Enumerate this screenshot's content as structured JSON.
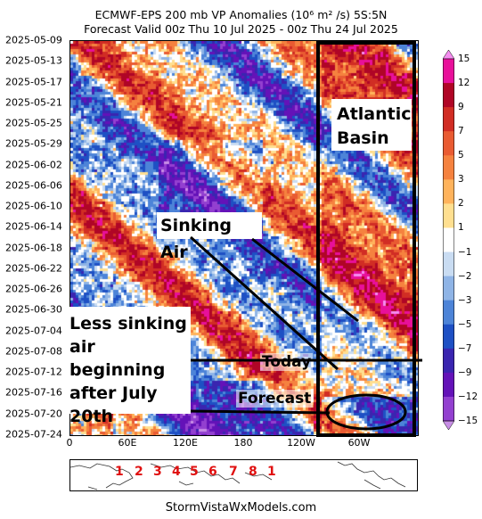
{
  "title_line1": "ECMWF-EPS 200 mb VP Anomalies (10⁶ m² /s) 5S:5N",
  "title_line2": "Forecast Valid 00z Thu 10 Jul 2025 - 00z Thu 24 Jul 2025",
  "footer": "StormVistaWxModels.com",
  "annotations": {
    "atlantic_line1": "Atlantic",
    "atlantic_line2": "Basin",
    "sinking_air": "Sinking Air",
    "less_sinking": [
      "Less sinking",
      "air beginning",
      "after July",
      "20th"
    ],
    "today": "Today",
    "forecast": "Forecast"
  },
  "mjo_phases": [
    "1",
    "2",
    "3",
    "4",
    "5",
    "6",
    "7",
    "8",
    "1"
  ],
  "chart_data": {
    "type": "heatmap",
    "title": "ECMWF-EPS 200 mb VP Anomalies (10⁶ m² /s) 5S:5N",
    "subtitle": "Forecast Valid 00z Thu 10 Jul 2025 - 00z Thu 24 Jul 2025",
    "y_ticks": [
      "2025-05-09",
      "2025-05-13",
      "2025-05-17",
      "2025-05-21",
      "2025-05-25",
      "2025-05-29",
      "2025-06-02",
      "2025-06-06",
      "2025-06-10",
      "2025-06-14",
      "2025-06-18",
      "2025-06-22",
      "2025-06-26",
      "2025-06-30",
      "2025-07-04",
      "2025-07-08",
      "2025-07-12",
      "2025-07-16",
      "2025-07-20",
      "2025-07-24"
    ],
    "y_range": [
      "2025-05-09",
      "2025-07-24"
    ],
    "x_ticks": [
      "0",
      "60E",
      "120E",
      "180",
      "120W",
      "60W"
    ],
    "x_range_lon": [
      0,
      360
    ],
    "colorbar_ticks": [
      15,
      12,
      9,
      7,
      5,
      3,
      2,
      1,
      -1,
      -2,
      -3,
      -5,
      -7,
      -9,
      -12,
      -15
    ],
    "colorbar_colors": [
      "#f58ef0",
      "#e8109a",
      "#b00526",
      "#d12d24",
      "#e95b32",
      "#f5823f",
      "#ffb35c",
      "#ffdf90",
      "#ffffff",
      "#c9dcf2",
      "#8fb4e6",
      "#4d84d8",
      "#1e50c4",
      "#3a25b0",
      "#6412b8",
      "#9340d0",
      "#c88ee6"
    ],
    "today": "2025-07-10",
    "forecast_end": "2025-07-24",
    "pattern": "Eastward-propagating bands: positive (sinking, red) anomalies from the Atlantic/Africa sector migrating toward the Pacific; negative (rising, blue/purple) bands over the Indian Ocean and West Pacific; weakening positive anomalies in the Atlantic basin after 2025-07-20 in the forecast."
  }
}
